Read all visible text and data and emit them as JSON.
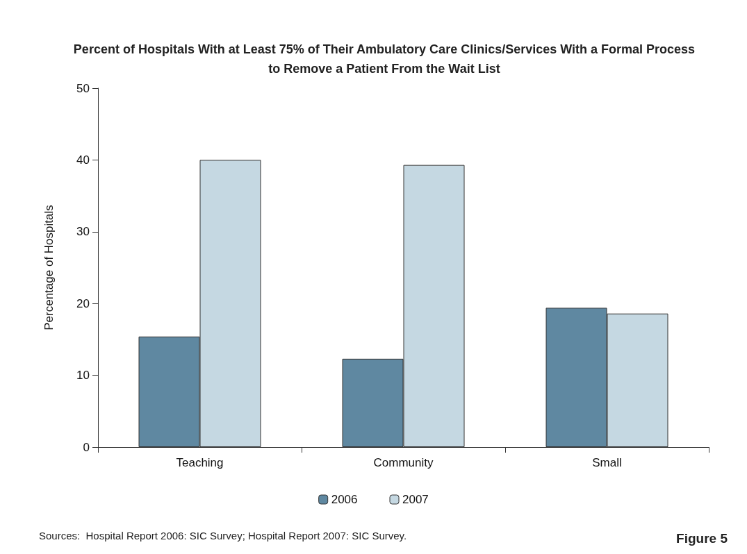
{
  "chart_data": {
    "type": "bar",
    "title": "Percent of Hospitals With at Least 75% of Their Ambulatory Care Clinics/Services With a Formal Process\nto Remove a Patient From the Wait List",
    "ylabel": "Percentage of Hospitals",
    "categories": [
      "Teaching",
      "Community",
      "Small"
    ],
    "series": [
      {
        "name": "2006",
        "color": "#5f88a1",
        "values": [
          15.4,
          12.3,
          19.4
        ]
      },
      {
        "name": "2007",
        "color": "#c5d8e2",
        "values": [
          40.0,
          39.3,
          18.6
        ]
      }
    ],
    "ylim": [
      0,
      50
    ],
    "yticks": [
      0,
      10,
      20,
      30,
      40,
      50
    ],
    "grid": false,
    "legend": "bottom",
    "annotations": [
      "Sources:  Hospital Report 2006: SIC Survey; Hospital Report 2007: SIC Survey.",
      "Figure 5"
    ]
  }
}
